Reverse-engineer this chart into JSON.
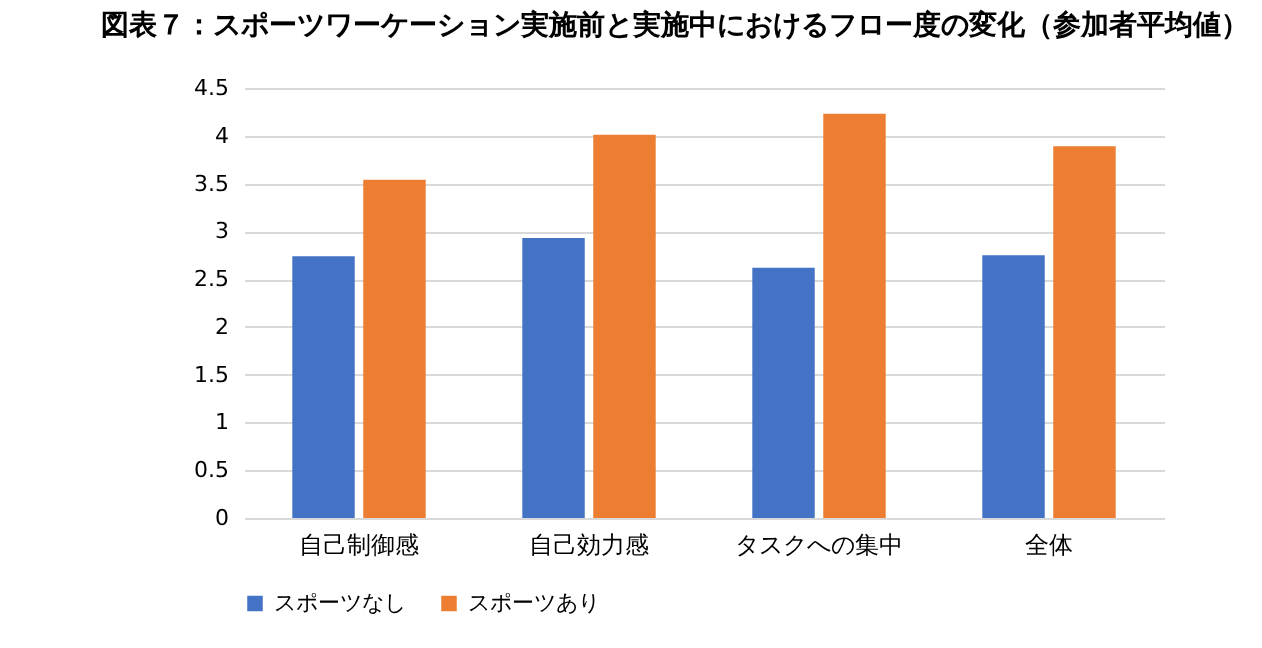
{
  "chart_data": {
    "type": "bar",
    "title": "図表７：スポーツワーケーション実施前と実施中におけるフロー度の変化（参加者平均値）",
    "categories": [
      "自己制御感",
      "自己効力感",
      "タスクへの集中",
      "全体"
    ],
    "series": [
      {
        "name": "スポーツなし",
        "color": "#4472c4",
        "values": [
          2.74,
          2.93,
          2.62,
          2.75
        ]
      },
      {
        "name": "スポーツあり",
        "color": "#ed7d31",
        "values": [
          3.54,
          4.01,
          4.23,
          3.89
        ]
      }
    ],
    "ylim": [
      0,
      4.5
    ],
    "yticks": [
      0,
      0.5,
      1,
      1.5,
      2,
      2.5,
      3,
      3.5,
      4,
      4.5
    ],
    "grid": "y",
    "legend": "bottom"
  }
}
